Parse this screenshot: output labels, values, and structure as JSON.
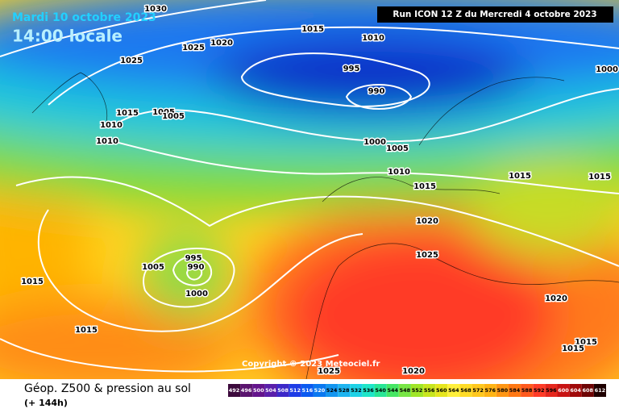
{
  "header": {
    "date": "Mardi 10 octobre 2023",
    "time": "14:00 locale",
    "run": "Run ICON 12 Z du Mercredi 4 octobre 2023"
  },
  "copyright": "Copyright © 2023 Meteociel.fr",
  "footer": {
    "title": "Géop. Z500 & pression au sol",
    "lead": "(+ 144h)"
  },
  "isobars": {
    "labels": [
      "1030",
      "1015",
      "1010",
      "1025",
      "1020",
      "1025",
      "995",
      "990",
      "1000",
      "1015",
      "1005",
      "1005",
      "1010",
      "1010",
      "1000",
      "1005",
      "1010",
      "1015",
      "1015",
      "1015",
      "1020",
      "1025",
      "995",
      "990",
      "1005",
      "1000",
      "1015",
      "1015",
      "1020",
      "1015",
      "1015",
      "1025",
      "1020"
    ]
  },
  "scale": {
    "labels": [
      492,
      496,
      500,
      504,
      508,
      512,
      516,
      520,
      524,
      528,
      532,
      536,
      540,
      544,
      548,
      552,
      556,
      560,
      564,
      568,
      572,
      576,
      580,
      584,
      588,
      592,
      596,
      600,
      604,
      608,
      612
    ]
  }
}
